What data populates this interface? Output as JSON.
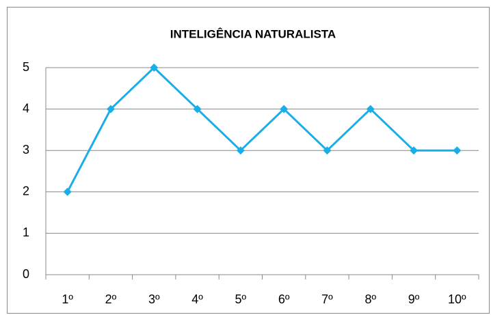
{
  "chart_data": {
    "type": "line",
    "title": "INTELIGÊNCIA NATURALISTA",
    "categories": [
      "1º",
      "2º",
      "3º",
      "4º",
      "5º",
      "6º",
      "7º",
      "8º",
      "9º",
      "10º"
    ],
    "series": [
      {
        "color": "#1aaee8",
        "values": [
          2,
          4,
          5,
          4,
          3,
          4,
          3,
          4,
          3,
          3
        ]
      }
    ],
    "ylim": [
      0,
      5
    ],
    "yticks": [
      0,
      1,
      2,
      3,
      4,
      5
    ],
    "grid": true
  }
}
